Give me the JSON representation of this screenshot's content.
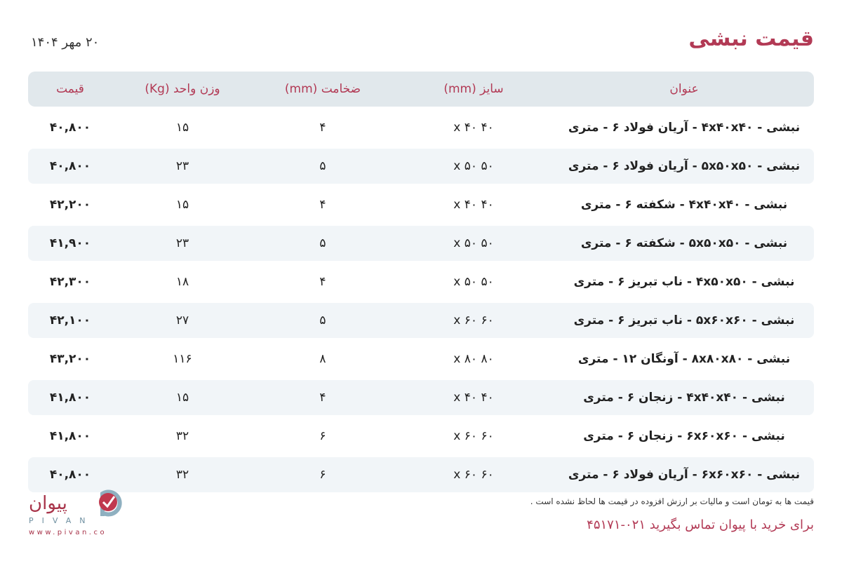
{
  "header": {
    "title": "قیمت نبشی",
    "date": "۲۰ مهر ۱۴۰۴"
  },
  "table": {
    "columns": [
      "عنوان",
      "سایز (mm)",
      "ضخامت (mm)",
      "وزن واحد (Kg)",
      "قیمت"
    ],
    "rows": [
      [
        "نبشی - ۴x۴۰x۴۰ - آریان فولاد ۶ - متری",
        "۴۰ x ۴۰",
        "۴",
        "۱۵",
        "۴۰,۸۰۰"
      ],
      [
        "نبشی - ۵x۵۰x۵۰ - آریان فولاد ۶ - متری",
        "۵۰ x ۵۰",
        "۵",
        "۲۳",
        "۴۰,۸۰۰"
      ],
      [
        "نبشی - ۴x۴۰x۴۰ - شکفته ۶ - متری",
        "۴۰ x ۴۰",
        "۴",
        "۱۵",
        "۴۲,۲۰۰"
      ],
      [
        "نبشی - ۵x۵۰x۵۰ - شکفته ۶ - متری",
        "۵۰ x ۵۰",
        "۵",
        "۲۳",
        "۴۱,۹۰۰"
      ],
      [
        "نبشی - ۴x۵۰x۵۰ - ناب تبریز ۶ - متری",
        "۵۰ x ۵۰",
        "۴",
        "۱۸",
        "۴۲,۳۰۰"
      ],
      [
        "نبشی - ۵x۶۰x۶۰ - ناب تبریز ۶ - متری",
        "۶۰ x ۶۰",
        "۵",
        "۲۷",
        "۴۲,۱۰۰"
      ],
      [
        "نبشی - ۸x۸۰x۸۰ - آونگان ۱۲ - متری",
        "۸۰ x ۸۰",
        "۸",
        "۱۱۶",
        "۴۳,۲۰۰"
      ],
      [
        "نبشی - ۴x۴۰x۴۰ - زنجان ۶ - متری",
        "۴۰ x ۴۰",
        "۴",
        "۱۵",
        "۴۱,۸۰۰"
      ],
      [
        "نبشی - ۶x۶۰x۶۰ - زنجان ۶ - متری",
        "۶۰ x ۶۰",
        "۶",
        "۳۲",
        "۴۱,۸۰۰"
      ],
      [
        "نبشی - ۶x۶۰x۶۰ - آریان فولاد ۶ - متری",
        "۶۰ x ۶۰",
        "۶",
        "۳۲",
        "۴۰,۸۰۰"
      ]
    ]
  },
  "footer": {
    "note": "قیمت ها به تومان است و مالیات بر ارزش افزوده در قیمت ها لحاظ نشده است .",
    "cta": "برای خرید با پیوان تماس بگیرید ۰۲۱-۴۵۱۷۱",
    "logo": {
      "fa": "پیوان",
      "en": "PIVAN",
      "url": "www.pivan.co"
    }
  },
  "colors": {
    "accent": "#b23a55",
    "header_bg": "#e1e8ec",
    "stripe": "#f1f5f8",
    "logo_blue": "#8fb0c0"
  }
}
